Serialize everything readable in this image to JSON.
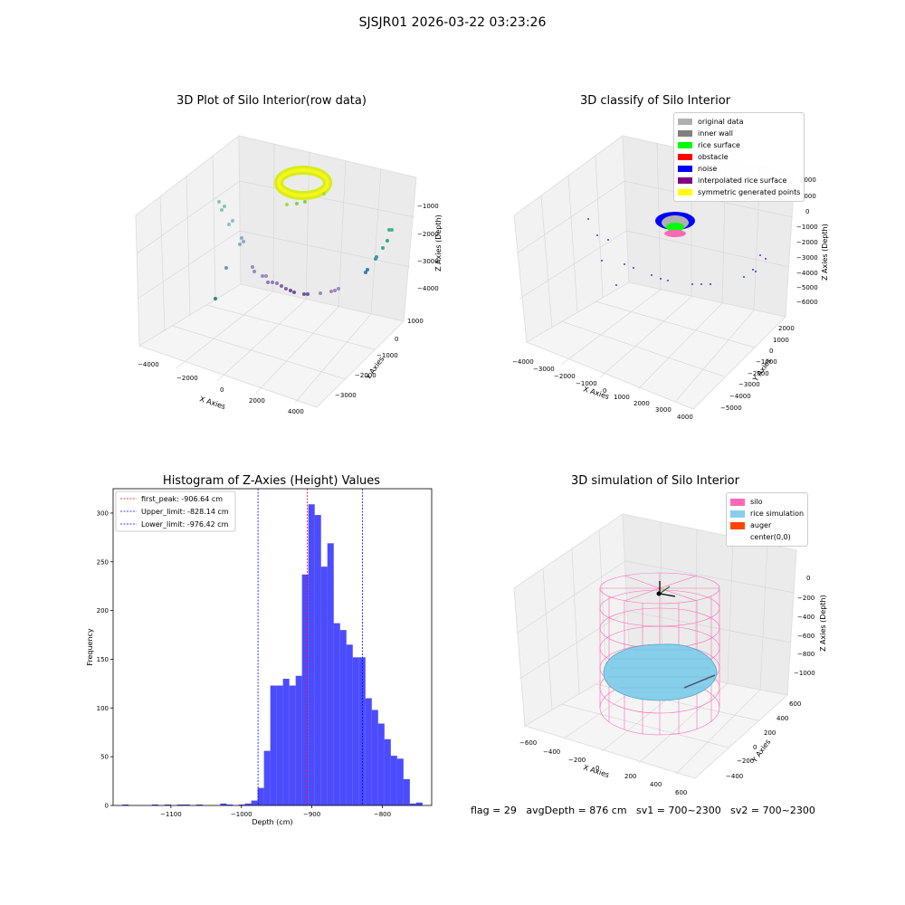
{
  "figure": {
    "suptitle": "SJSJR01 2026-03-22 03:23:26",
    "footer": "flag = 29   avgDepth = 876 cm   sv1 = 700~2300   sv2 = 700~2300"
  },
  "panels": {
    "raw": {
      "title": "3D Plot of Silo Interior(row data)",
      "xlabel": "X Axies",
      "ylabel": "Y Axies",
      "zlabel": "Z Axies (Depth)",
      "xticks": [
        "−4000",
        "−2000",
        "0",
        "2000",
        "4000"
      ],
      "yticks": [
        "1000",
        "0",
        "−1000",
        "−2000",
        "−3000"
      ],
      "zticks": [
        "−1000",
        "−2000",
        "−3000",
        "−4000"
      ]
    },
    "classify": {
      "title": "3D classify of Silo Interior",
      "xlabel": "X Axies",
      "ylabel": "Y Axies",
      "zlabel": "Z Axies (Depth)",
      "xticks": [
        "−4000",
        "−3000",
        "−2000",
        "−1000",
        "0",
        "1000",
        "2000",
        "3000",
        "4000"
      ],
      "yticks": [
        "2000",
        "1000",
        "0",
        "−1000",
        "−2000",
        "−3000",
        "−4000",
        "−5000"
      ],
      "zticks": [
        "2000",
        "1000",
        "0",
        "−1000",
        "−2000",
        "−3000",
        "−4000",
        "−5000",
        "−6000"
      ],
      "legend": [
        {
          "label": "original data",
          "color": "#b0b0b0"
        },
        {
          "label": "inner wall",
          "color": "#808080"
        },
        {
          "label": "rice surface",
          "color": "#00ff00"
        },
        {
          "label": "obstacle",
          "color": "#ff0000"
        },
        {
          "label": "noise",
          "color": "#0000ff"
        },
        {
          "label": "interpolated rice surface",
          "color": "#800080"
        },
        {
          "label": "symmetric generated points",
          "color": "#ffff00"
        }
      ]
    },
    "simulation": {
      "title": "3D simulation of Silo Interior",
      "xlabel": "X Axies",
      "ylabel": "Y Axies",
      "zlabel": "Z Axies (Depth)",
      "xticks": [
        "−600",
        "−400",
        "−200",
        "0",
        "200",
        "400",
        "600"
      ],
      "yticks": [
        "600",
        "400",
        "200",
        "0",
        "−200",
        "−400"
      ],
      "zticks": [
        "0",
        "−200",
        "−400",
        "−600",
        "−800",
        "−1000"
      ],
      "legend": [
        {
          "label": "silo",
          "color": "#ff69b4"
        },
        {
          "label": "rice simulation",
          "color": "#87ceeb"
        },
        {
          "label": "auger",
          "color": "#ff4500"
        },
        {
          "label": "center(0,0)",
          "color": ""
        }
      ]
    }
  },
  "chart_data": [
    {
      "type": "bar",
      "title": "Histogram of Z-Axies (Height) Values",
      "xlabel": "Depth (cm)",
      "ylabel": "Frequency",
      "xlim": [
        -1182,
        -730
      ],
      "ylim": [
        0,
        325
      ],
      "xticks": [
        -1100,
        -1000,
        -900,
        -800
      ],
      "yticks": [
        0,
        50,
        100,
        150,
        200,
        250,
        300
      ],
      "bar_color": "#0000ff",
      "bins": [
        {
          "x0": -1169,
          "x1": -1160,
          "count": 1
        },
        {
          "x0": -1127,
          "x1": -1118,
          "count": 1
        },
        {
          "x0": -1109,
          "x1": -1100,
          "count": 1
        },
        {
          "x0": -1091,
          "x1": -1082,
          "count": 1
        },
        {
          "x0": -1082,
          "x1": -1073,
          "count": 1
        },
        {
          "x0": -1064,
          "x1": -1055,
          "count": 1
        },
        {
          "x0": -1030,
          "x1": -1021,
          "count": 2
        },
        {
          "x0": -1021,
          "x1": -1012,
          "count": 1
        },
        {
          "x0": -1004,
          "x1": -995,
          "count": 1
        },
        {
          "x0": -995,
          "x1": -986,
          "count": 2
        },
        {
          "x0": -986,
          "x1": -977,
          "count": 5
        },
        {
          "x0": -977,
          "x1": -968,
          "count": 18
        },
        {
          "x0": -968,
          "x1": -959,
          "count": 56
        },
        {
          "x0": -959,
          "x1": -950,
          "count": 123
        },
        {
          "x0": -950,
          "x1": -941,
          "count": 123
        },
        {
          "x0": -941,
          "x1": -932,
          "count": 130
        },
        {
          "x0": -932,
          "x1": -923,
          "count": 123
        },
        {
          "x0": -923,
          "x1": -914,
          "count": 133
        },
        {
          "x0": -914,
          "x1": -905,
          "count": 237
        },
        {
          "x0": -905,
          "x1": -896,
          "count": 309
        },
        {
          "x0": -896,
          "x1": -887,
          "count": 298
        },
        {
          "x0": -887,
          "x1": -878,
          "count": 245
        },
        {
          "x0": -878,
          "x1": -869,
          "count": 269
        },
        {
          "x0": -869,
          "x1": -860,
          "count": 187
        },
        {
          "x0": -860,
          "x1": -851,
          "count": 180
        },
        {
          "x0": -851,
          "x1": -842,
          "count": 165
        },
        {
          "x0": -842,
          "x1": -833,
          "count": 152
        },
        {
          "x0": -833,
          "x1": -824,
          "count": 152
        },
        {
          "x0": -824,
          "x1": -815,
          "count": 110
        },
        {
          "x0": -815,
          "x1": -806,
          "count": 98
        },
        {
          "x0": -806,
          "x1": -797,
          "count": 84
        },
        {
          "x0": -797,
          "x1": -788,
          "count": 68
        },
        {
          "x0": -788,
          "x1": -779,
          "count": 51
        },
        {
          "x0": -779,
          "x1": -770,
          "count": 48
        },
        {
          "x0": -770,
          "x1": -761,
          "count": 27
        },
        {
          "x0": -761,
          "x1": -752,
          "count": 2
        },
        {
          "x0": -752,
          "x1": -743,
          "count": 3
        }
      ],
      "vlines": [
        {
          "label": "first_peak: -906.64 cm",
          "x": -906.64,
          "color": "#ff0000"
        },
        {
          "label": "Upper_limit: -828.14 cm",
          "x": -828.14,
          "color": "#0000ff"
        },
        {
          "label": "Lower_limit: -976.42 cm",
          "x": -976.42,
          "color": "#0000ff"
        }
      ],
      "legend_position": "upper left"
    }
  ]
}
